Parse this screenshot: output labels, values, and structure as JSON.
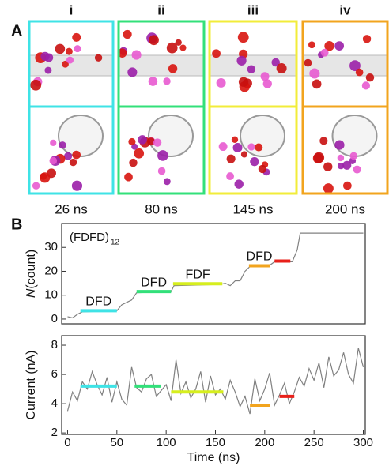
{
  "panel_labels": [
    "A",
    "B"
  ],
  "panel_a": {
    "columns": [
      {
        "numeral": "i",
        "time": "26 ns",
        "color": "#3fe3e6"
      },
      {
        "numeral": "ii",
        "time": "80 ns",
        "color": "#33e07a"
      },
      {
        "numeral": "iii",
        "time": "145 ns",
        "color": "#f2ec3a"
      },
      {
        "numeral": "iv",
        "time": "200 ns",
        "color": "#f2a41e"
      }
    ]
  },
  "chart_data": [
    {
      "type": "line",
      "ylabel": [
        "N",
        "(count)"
      ],
      "annotation": [
        "(FDFD)",
        "12"
      ],
      "xlim": [
        -6,
        302
      ],
      "ylim": [
        -2,
        40
      ],
      "yticks": [
        0,
        10,
        20,
        30
      ],
      "series": [
        {
          "color": "#808080",
          "x": [
            0,
            5,
            10,
            15,
            50,
            55,
            60,
            65,
            70,
            105,
            108,
            155,
            160,
            165,
            170,
            175,
            180,
            185,
            205,
            210,
            228,
            233,
            236,
            300
          ],
          "values": [
            1,
            0.5,
            2,
            3,
            3.5,
            6,
            7,
            8,
            11,
            11.5,
            14,
            14.5,
            15,
            14,
            16,
            16,
            20,
            22,
            22.5,
            24,
            24,
            29,
            36,
            36
          ]
        }
      ],
      "segments": [
        {
          "label": "DFD",
          "color": "#3fe3e6",
          "x": [
            13,
            50
          ],
          "y": 3.5
        },
        {
          "label": "DFD",
          "color": "#33e07a",
          "x": [
            70,
            105
          ],
          "y": 11.5
        },
        {
          "label": "FDF",
          "color": "#d6ee1e",
          "x": [
            107,
            157
          ],
          "y": 14.8
        },
        {
          "label": "DFD",
          "color": "#f2a41e",
          "x": [
            184,
            205
          ],
          "y": 22.3
        },
        {
          "color": "#e8201a",
          "x": [
            210,
            226
          ],
          "y": 24.3
        }
      ]
    },
    {
      "type": "line",
      "ylabel": [
        "Current (nA)"
      ],
      "xlabel": "Time (ns)",
      "xlim": [
        -6,
        302
      ],
      "ylim": [
        1.9,
        8.65
      ],
      "yticks": [
        2,
        4,
        6,
        8
      ],
      "xticks": [
        0,
        50,
        100,
        150,
        200,
        250,
        300
      ],
      "series": [
        {
          "color": "#808080",
          "x": [
            0,
            5,
            10,
            15,
            20,
            25,
            30,
            35,
            40,
            45,
            50,
            55,
            60,
            65,
            70,
            75,
            80,
            85,
            90,
            95,
            100,
            105,
            110,
            115,
            120,
            125,
            130,
            135,
            140,
            145,
            150,
            155,
            160,
            165,
            170,
            175,
            180,
            185,
            190,
            195,
            200,
            205,
            210,
            215,
            220,
            225,
            230,
            235,
            240,
            245,
            250,
            255,
            260,
            265,
            270,
            275,
            280,
            285,
            290,
            295,
            300
          ],
          "values": [
            3.5,
            4.8,
            4.2,
            5.5,
            5.0,
            6.2,
            5.3,
            4.6,
            5.8,
            4.1,
            5.5,
            4.3,
            3.9,
            6.5,
            5.1,
            4.8,
            5.7,
            6.0,
            4.5,
            4.9,
            5.3,
            4.2,
            7.0,
            4.7,
            5.5,
            4.4,
            5.0,
            6.2,
            4.1,
            5.9,
            4.6,
            5.0,
            4.3,
            5.6,
            4.8,
            3.8,
            4.5,
            3.3,
            5.7,
            4.2,
            5.0,
            6.1,
            3.9,
            4.6,
            5.4,
            4.0,
            4.8,
            5.8,
            5.2,
            6.4,
            5.6,
            6.8,
            5.1,
            7.2,
            5.9,
            6.3,
            7.5,
            6.0,
            5.4,
            7.8,
            6.5
          ]
        }
      ],
      "segments": [
        {
          "color": "#3fe3e6",
          "x": [
            13,
            50
          ],
          "y": 5.2
        },
        {
          "color": "#33e07a",
          "x": [
            68,
            95
          ],
          "y": 5.2
        },
        {
          "color": "#d6ee1e",
          "x": [
            105,
            158
          ],
          "y": 4.8
        },
        {
          "color": "#f2a41e",
          "x": [
            185,
            205
          ],
          "y": 3.9
        },
        {
          "color": "#e8201a",
          "x": [
            215,
            230
          ],
          "y": 4.5
        }
      ]
    }
  ]
}
